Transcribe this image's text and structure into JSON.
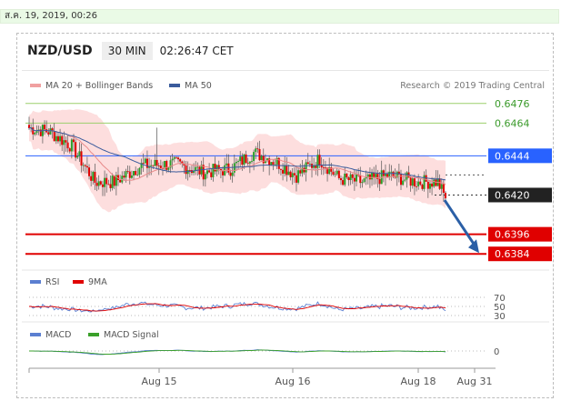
{
  "header": {
    "date_stamp": "ส.ค. 19, 2019, 00:26",
    "symbol": "NZD/USD",
    "timeframe": "30 MIN",
    "time": "02:26:47 CET"
  },
  "credit": "Research © 2019 Trading Central",
  "colors": {
    "price_line": "#2962ff",
    "support": "#e00000",
    "resistance": "#9bcf6b",
    "bollinger_fill": "#fcd3d3",
    "ma50": "#3a5b9c",
    "rsi": "#5b7fd1",
    "rsi_9ma": "#e00000",
    "macd": "#5b7fd1",
    "macd_signal": "#3aa02a",
    "candle_up": "#2aa02a",
    "candle_down": "#e00000",
    "arrow": "#2b5fa6"
  },
  "chart_data": [
    {
      "type": "candlestick",
      "legend": [
        {
          "label": "MA 20 + Bollinger Bands",
          "color": "#f0a0a0"
        },
        {
          "label": "MA 50",
          "color": "#3a5b9c"
        }
      ],
      "ylim": [
        0.6378,
        0.6482
      ],
      "levels": [
        {
          "value": 0.6476,
          "label": "0.6476",
          "kind": "resistance"
        },
        {
          "value": 0.6464,
          "label": "0.6464",
          "kind": "resistance"
        },
        {
          "value": 0.6444,
          "label": "0.6444",
          "kind": "pivot"
        },
        {
          "value": 0.642,
          "label": "0.6420",
          "kind": "last_price"
        },
        {
          "value": 0.6396,
          "label": "0.6396",
          "kind": "support"
        },
        {
          "value": 0.6384,
          "label": "0.6384",
          "kind": "support"
        }
      ],
      "projection": {
        "from": 0.6418,
        "to": 0.6384
      },
      "x_ticks": [
        "Aug 15",
        "Aug 16",
        "Aug 18",
        "Aug 31"
      ],
      "anchors": [
        {
          "t": 0,
          "v": 0.6461
        },
        {
          "t": 10,
          "v": 0.6459
        },
        {
          "t": 22,
          "v": 0.645
        },
        {
          "t": 34,
          "v": 0.6428
        },
        {
          "t": 44,
          "v": 0.6428
        },
        {
          "t": 58,
          "v": 0.6438
        },
        {
          "t": 76,
          "v": 0.6439
        },
        {
          "t": 90,
          "v": 0.6434
        },
        {
          "t": 104,
          "v": 0.6436
        },
        {
          "t": 116,
          "v": 0.6446
        },
        {
          "t": 128,
          "v": 0.644
        },
        {
          "t": 138,
          "v": 0.6432
        },
        {
          "t": 150,
          "v": 0.6442
        },
        {
          "t": 160,
          "v": 0.643
        },
        {
          "t": 172,
          "v": 0.6428
        },
        {
          "t": 186,
          "v": 0.6432
        },
        {
          "t": 200,
          "v": 0.6428
        },
        {
          "t": 211,
          "v": 0.6428
        },
        {
          "t": 215,
          "v": 0.6418
        }
      ]
    },
    {
      "type": "line",
      "name": "rsi",
      "legend": [
        {
          "label": "RSI",
          "color": "#5b7fd1"
        },
        {
          "label": "9MA",
          "color": "#e00000"
        }
      ],
      "y_ticks": [
        70,
        50,
        30
      ]
    },
    {
      "type": "line",
      "name": "macd",
      "legend": [
        {
          "label": "MACD",
          "color": "#5b7fd1"
        },
        {
          "label": "MACD Signal",
          "color": "#3aa02a"
        }
      ],
      "y_ticks": [
        0
      ]
    }
  ]
}
